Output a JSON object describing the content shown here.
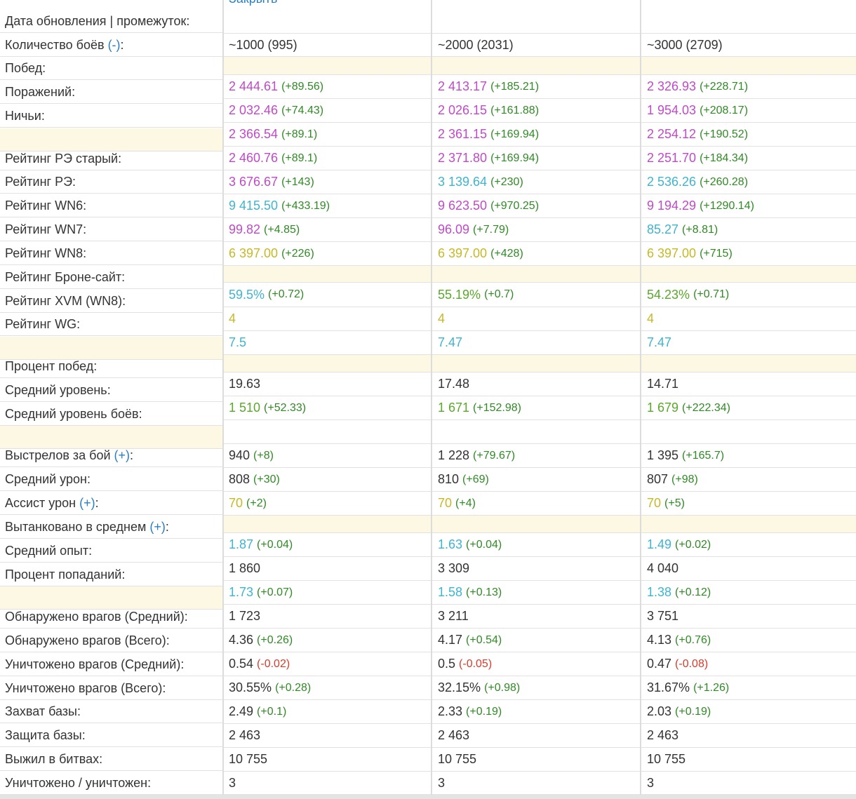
{
  "close_link": "Закрыть",
  "labels": [
    {
      "text": "Дата обновления | промежуток:"
    },
    {
      "text": "Количество боёв ",
      "toggle": "(-)",
      "tail": ":"
    },
    {
      "text": "Побед:"
    },
    {
      "text": "Поражений:"
    },
    {
      "text": "Ничьи:"
    },
    {
      "text": ""
    },
    {
      "text": "Рейтинг РЭ старый:"
    },
    {
      "text": "Рейтинг РЭ:"
    },
    {
      "text": "Рейтинг WN6:"
    },
    {
      "text": "Рейтинг WN7:"
    },
    {
      "text": "Рейтинг WN8:"
    },
    {
      "text": "Рейтинг Броне-сайт:"
    },
    {
      "text": "Рейтинг XVM (WN8):"
    },
    {
      "text": "Рейтинг WG:"
    },
    {
      "text": ""
    },
    {
      "text": "Процент побед:"
    },
    {
      "text": "Средний уровень:"
    },
    {
      "text": "Средний уровень боёв:"
    },
    {
      "text": ""
    },
    {
      "text": "Выстрелов за бой ",
      "toggle": "(+)",
      "tail": ":"
    },
    {
      "text": "Средний урон:"
    },
    {
      "text": "Ассист урон ",
      "toggle": "(+)",
      "tail": ":"
    },
    {
      "text": "Вытанковано в среднем ",
      "toggle": "(+)",
      "tail": ":"
    },
    {
      "text": "Средний опыт:"
    },
    {
      "text": "Процент попаданий:"
    },
    {
      "text": ""
    },
    {
      "text": "Обнаружено врагов (Средний):"
    },
    {
      "text": "Обнаружено врагов (Всего):"
    },
    {
      "text": "Уничтожено врагов (Средний):"
    },
    {
      "text": "Уничтожено врагов (Всего):"
    },
    {
      "text": "Захват базы:"
    },
    {
      "text": "Защита базы:"
    },
    {
      "text": "Выжил в битвах:"
    },
    {
      "text": "Уничтожено / уничтожен:"
    }
  ],
  "rows": [
    {
      "hl": false,
      "cells": [
        {
          "v": ""
        },
        {
          "v": ""
        },
        {
          "v": ""
        }
      ]
    },
    {
      "hl": false,
      "cells": [
        {
          "v": "~1000 (995)",
          "c": "black"
        },
        {
          "v": "~2000 (2031)",
          "c": "black"
        },
        {
          "v": "~3000 (2709)",
          "c": "black"
        }
      ]
    },
    {
      "hl": true,
      "cells": [
        {
          "v": ""
        },
        {
          "v": ""
        },
        {
          "v": ""
        }
      ]
    },
    {
      "hl": false,
      "cells": [
        {
          "v": "2 444.61",
          "c": "magenta",
          "d": "(+89.56)",
          "dc": "dgreen"
        },
        {
          "v": "2 413.17",
          "c": "magenta",
          "d": "(+185.21)",
          "dc": "dgreen"
        },
        {
          "v": "2 326.93",
          "c": "magenta",
          "d": "(+228.71)",
          "dc": "dgreen"
        }
      ]
    },
    {
      "hl": false,
      "cells": [
        {
          "v": "2 032.46",
          "c": "magenta",
          "d": "(+74.43)",
          "dc": "dgreen"
        },
        {
          "v": "2 026.15",
          "c": "magenta",
          "d": "(+161.88)",
          "dc": "dgreen"
        },
        {
          "v": "1 954.03",
          "c": "magenta",
          "d": "(+208.17)",
          "dc": "dgreen"
        }
      ]
    },
    {
      "hl": false,
      "cells": [
        {
          "v": "2 366.54",
          "c": "magenta",
          "d": "(+89.1)",
          "dc": "dgreen"
        },
        {
          "v": "2 361.15",
          "c": "magenta",
          "d": "(+169.94)",
          "dc": "dgreen"
        },
        {
          "v": "2 254.12",
          "c": "magenta",
          "d": "(+190.52)",
          "dc": "dgreen"
        }
      ]
    },
    {
      "hl": false,
      "cells": [
        {
          "v": "2 460.76",
          "c": "magenta",
          "d": "(+89.1)",
          "dc": "dgreen"
        },
        {
          "v": "2 371.80",
          "c": "magenta",
          "d": "(+169.94)",
          "dc": "dgreen"
        },
        {
          "v": "2 251.70",
          "c": "magenta",
          "d": "(+184.34)",
          "dc": "dgreen"
        }
      ]
    },
    {
      "hl": false,
      "cells": [
        {
          "v": "3 676.67",
          "c": "magenta",
          "d": "(+143)",
          "dc": "dgreen"
        },
        {
          "v": "3 139.64",
          "c": "cyan",
          "d": "(+230)",
          "dc": "dgreen"
        },
        {
          "v": "2 536.26",
          "c": "cyan",
          "d": "(+260.28)",
          "dc": "dgreen"
        }
      ]
    },
    {
      "hl": false,
      "cells": [
        {
          "v": "9 415.50",
          "c": "cyan",
          "d": "(+433.19)",
          "dc": "dgreen"
        },
        {
          "v": "9 623.50",
          "c": "magenta",
          "d": "(+970.25)",
          "dc": "dgreen"
        },
        {
          "v": "9 194.29",
          "c": "magenta",
          "d": "(+1290.14)",
          "dc": "dgreen"
        }
      ]
    },
    {
      "hl": false,
      "cells": [
        {
          "v": "99.82",
          "c": "magenta",
          "d": "(+4.85)",
          "dc": "dgreen"
        },
        {
          "v": "96.09",
          "c": "magenta",
          "d": "(+7.79)",
          "dc": "dgreen"
        },
        {
          "v": "85.27",
          "c": "cyan",
          "d": "(+8.81)",
          "dc": "dgreen"
        }
      ]
    },
    {
      "hl": false,
      "cells": [
        {
          "v": "6 397.00",
          "c": "yellow",
          "d": "(+226)",
          "dc": "dgreen"
        },
        {
          "v": "6 397.00",
          "c": "yellow",
          "d": "(+428)",
          "dc": "dgreen"
        },
        {
          "v": "6 397.00",
          "c": "yellow",
          "d": "(+715)",
          "dc": "dgreen"
        }
      ]
    },
    {
      "hl": true,
      "cells": [
        {
          "v": ""
        },
        {
          "v": ""
        },
        {
          "v": ""
        }
      ]
    },
    {
      "hl": false,
      "cells": [
        {
          "v": "59.5%",
          "c": "cyan",
          "d": "(+0.72)",
          "dc": "dgreen"
        },
        {
          "v": "55.19%",
          "c": "green",
          "d": "(+0.7)",
          "dc": "dgreen"
        },
        {
          "v": "54.23%",
          "c": "green",
          "d": "(+0.71)",
          "dc": "dgreen"
        }
      ]
    },
    {
      "hl": false,
      "cells": [
        {
          "v": "4",
          "c": "yellow"
        },
        {
          "v": "4",
          "c": "yellow"
        },
        {
          "v": "4",
          "c": "yellow"
        }
      ]
    },
    {
      "hl": false,
      "cells": [
        {
          "v": "7.5",
          "c": "cyan"
        },
        {
          "v": "7.47",
          "c": "cyan"
        },
        {
          "v": "7.47",
          "c": "cyan"
        }
      ]
    },
    {
      "hl": true,
      "cells": [
        {
          "v": ""
        },
        {
          "v": ""
        },
        {
          "v": ""
        }
      ]
    },
    {
      "hl": false,
      "cells": [
        {
          "v": "19.63",
          "c": "black"
        },
        {
          "v": "17.48",
          "c": "black"
        },
        {
          "v": "14.71",
          "c": "black"
        }
      ]
    },
    {
      "hl": false,
      "cells": [
        {
          "v": "1 510",
          "c": "green",
          "d": "(+52.33)",
          "dc": "dgreen"
        },
        {
          "v": "1 671",
          "c": "green",
          "d": "(+152.98)",
          "dc": "dgreen"
        },
        {
          "v": "1 679",
          "c": "green",
          "d": "(+222.34)",
          "dc": "dgreen"
        }
      ]
    },
    {
      "hl": false,
      "cells": [
        {
          "v": ""
        },
        {
          "v": ""
        },
        {
          "v": ""
        }
      ]
    },
    {
      "hl": false,
      "cells": [
        {
          "v": "940",
          "c": "black",
          "d": "(+8)",
          "dc": "dgreen"
        },
        {
          "v": "1 228",
          "c": "black",
          "d": "(+79.67)",
          "dc": "dgreen"
        },
        {
          "v": "1 395",
          "c": "black",
          "d": "(+165.7)",
          "dc": "dgreen"
        }
      ]
    },
    {
      "hl": false,
      "cells": [
        {
          "v": "808",
          "c": "black",
          "d": "(+30)",
          "dc": "dgreen"
        },
        {
          "v": "810",
          "c": "black",
          "d": "(+69)",
          "dc": "dgreen"
        },
        {
          "v": "807",
          "c": "black",
          "d": "(+98)",
          "dc": "dgreen"
        }
      ]
    },
    {
      "hl": false,
      "cells": [
        {
          "v": "70",
          "c": "yellow",
          "d": "(+2)",
          "dc": "dgreen"
        },
        {
          "v": "70",
          "c": "yellow",
          "d": "(+4)",
          "dc": "dgreen"
        },
        {
          "v": "70",
          "c": "yellow",
          "d": "(+5)",
          "dc": "dgreen"
        }
      ]
    },
    {
      "hl": true,
      "cells": [
        {
          "v": ""
        },
        {
          "v": ""
        },
        {
          "v": ""
        }
      ]
    },
    {
      "hl": false,
      "cells": [
        {
          "v": "1.87",
          "c": "cyan",
          "d": "(+0.04)",
          "dc": "dgreen"
        },
        {
          "v": "1.63",
          "c": "cyan",
          "d": "(+0.04)",
          "dc": "dgreen"
        },
        {
          "v": "1.49",
          "c": "cyan",
          "d": "(+0.02)",
          "dc": "dgreen"
        }
      ]
    },
    {
      "hl": false,
      "cells": [
        {
          "v": "1 860",
          "c": "black"
        },
        {
          "v": "3 309",
          "c": "black"
        },
        {
          "v": "4 040",
          "c": "black"
        }
      ]
    },
    {
      "hl": false,
      "cells": [
        {
          "v": "1.73",
          "c": "cyan",
          "d": "(+0.07)",
          "dc": "dgreen"
        },
        {
          "v": "1.58",
          "c": "cyan",
          "d": "(+0.13)",
          "dc": "dgreen"
        },
        {
          "v": "1.38",
          "c": "cyan",
          "d": "(+0.12)",
          "dc": "dgreen"
        }
      ]
    },
    {
      "hl": false,
      "cells": [
        {
          "v": "1 723",
          "c": "black"
        },
        {
          "v": "3 211",
          "c": "black"
        },
        {
          "v": "3 751",
          "c": "black"
        }
      ]
    },
    {
      "hl": false,
      "cells": [
        {
          "v": "4.36",
          "c": "black",
          "d": "(+0.26)",
          "dc": "dgreen"
        },
        {
          "v": "4.17",
          "c": "black",
          "d": "(+0.54)",
          "dc": "dgreen"
        },
        {
          "v": "4.13",
          "c": "black",
          "d": "(+0.76)",
          "dc": "dgreen"
        }
      ]
    },
    {
      "hl": false,
      "cells": [
        {
          "v": "0.54",
          "c": "black",
          "d": "(-0.02)",
          "dc": "red"
        },
        {
          "v": "0.5",
          "c": "black",
          "d": "(-0.05)",
          "dc": "red"
        },
        {
          "v": "0.47",
          "c": "black",
          "d": "(-0.08)",
          "dc": "red"
        }
      ]
    },
    {
      "hl": false,
      "cells": [
        {
          "v": "30.55%",
          "c": "black",
          "d": "(+0.28)",
          "dc": "dgreen"
        },
        {
          "v": "32.15%",
          "c": "black",
          "d": "(+0.98)",
          "dc": "dgreen"
        },
        {
          "v": "31.67%",
          "c": "black",
          "d": "(+1.26)",
          "dc": "dgreen"
        }
      ]
    },
    {
      "hl": false,
      "cells": [
        {
          "v": "2.49",
          "c": "black",
          "d": "(+0.1)",
          "dc": "dgreen"
        },
        {
          "v": "2.33",
          "c": "black",
          "d": "(+0.19)",
          "dc": "dgreen"
        },
        {
          "v": "2.03",
          "c": "black",
          "d": "(+0.19)",
          "dc": "dgreen"
        }
      ]
    },
    {
      "hl": false,
      "cells": [
        {
          "v": "2 463",
          "c": "black"
        },
        {
          "v": "2 463",
          "c": "black"
        },
        {
          "v": "2 463",
          "c": "black"
        }
      ]
    },
    {
      "hl": false,
      "cells": [
        {
          "v": "10 755",
          "c": "black"
        },
        {
          "v": "10 755",
          "c": "black"
        },
        {
          "v": "10 755",
          "c": "black"
        }
      ]
    },
    {
      "hl": false,
      "cells": [
        {
          "v": "3",
          "c": "black"
        },
        {
          "v": "3",
          "c": "black"
        },
        {
          "v": "3",
          "c": "black"
        }
      ]
    }
  ]
}
